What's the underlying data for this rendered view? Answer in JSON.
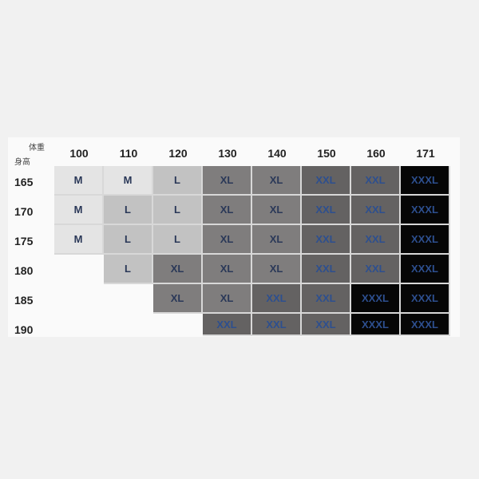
{
  "chart_data": {
    "type": "table",
    "corner_labels": {
      "columns": "体重",
      "rows": "身高"
    },
    "columns": [
      "100",
      "110",
      "120",
      "130",
      "140",
      "150",
      "160",
      "171"
    ],
    "rows": [
      {
        "label": "165",
        "values": [
          "M",
          "M",
          "L",
          "XL",
          "XL",
          "XXL",
          "XXL",
          "XXXL"
        ]
      },
      {
        "label": "170",
        "values": [
          "M",
          "L",
          "L",
          "XL",
          "XL",
          "XXL",
          "XXL",
          "XXXL"
        ]
      },
      {
        "label": "175",
        "values": [
          "M",
          "L",
          "L",
          "XL",
          "XL",
          "XXL",
          "XXL",
          "XXXL"
        ]
      },
      {
        "label": "180",
        "values": [
          "",
          "L",
          "XL",
          "XL",
          "XL",
          "XXL",
          "XXL",
          "XXXL"
        ]
      },
      {
        "label": "185",
        "values": [
          "",
          "",
          "XL",
          "XL",
          "XXL",
          "XXL",
          "XXXL",
          "XXXL"
        ]
      },
      {
        "label": "190",
        "values": [
          "",
          "",
          "",
          "XXL",
          "XXL",
          "XXL",
          "XXXL",
          "XXXL"
        ]
      }
    ],
    "size_colors": {
      "M": "#e4e4e4",
      "L": "#c2c2c2",
      "XL": "#7f7d7d",
      "XXL": "#646262",
      "XXXL": "#060606"
    },
    "text_colors": {
      "light": "#2a3858",
      "dark": "#2d4f8f"
    }
  }
}
